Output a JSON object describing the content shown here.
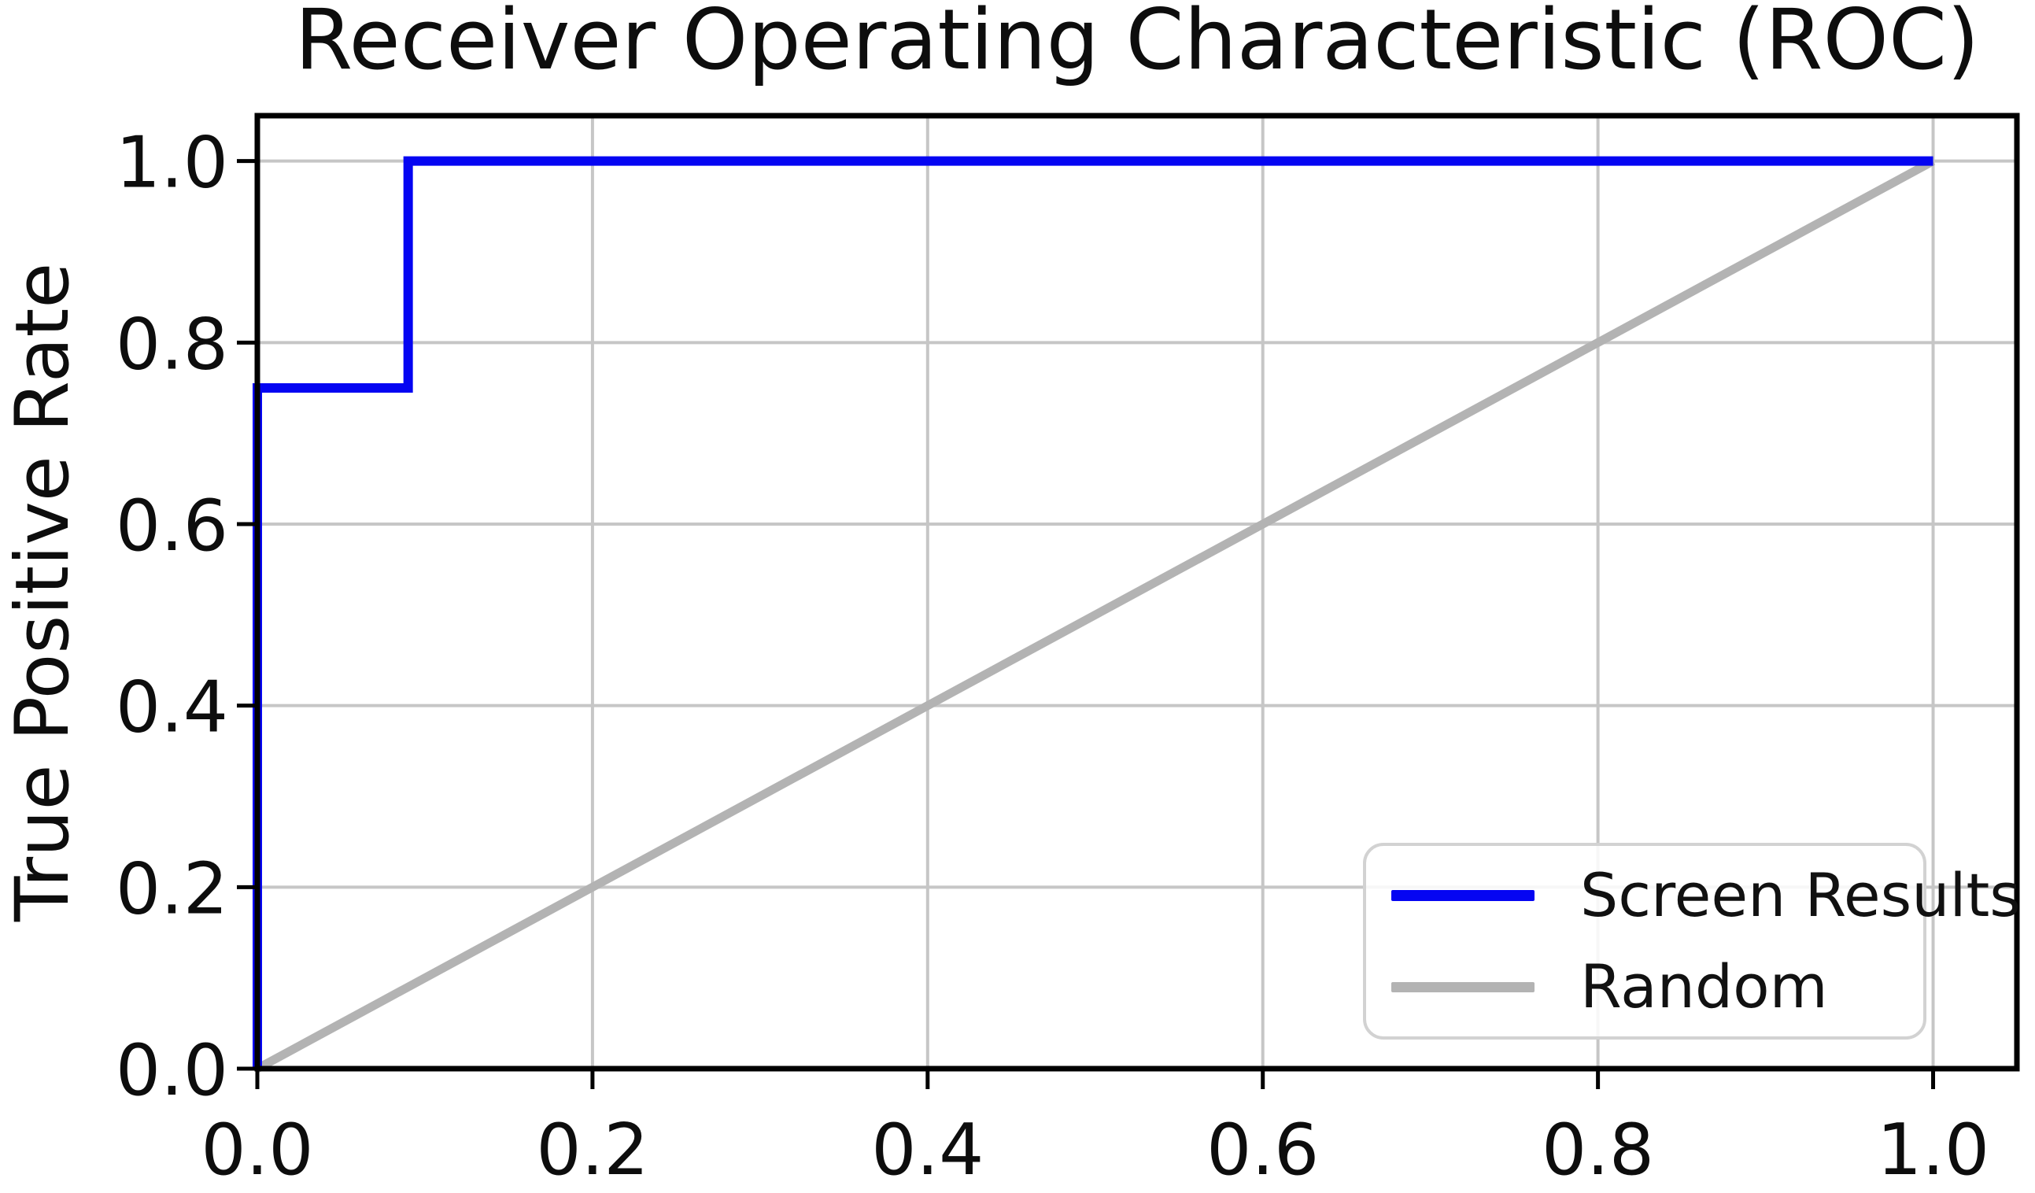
{
  "chart_data": {
    "type": "line",
    "title": "Receiver Operating Characteristic (ROC)",
    "xlabel": "",
    "ylabel": "True Positive Rate",
    "xlim": [
      0,
      1.05
    ],
    "ylim": [
      0,
      1.05
    ],
    "xtick_values": [
      0.0,
      0.2,
      0.4,
      0.6,
      0.8,
      1.0
    ],
    "xtick_labels": [
      "0.0",
      "0.2",
      "0.4",
      "0.6",
      "0.8",
      "1.0"
    ],
    "ytick_values": [
      0.0,
      0.2,
      0.4,
      0.6,
      0.8,
      1.0
    ],
    "ytick_labels": [
      "0.0",
      "0.2",
      "0.4",
      "0.6",
      "0.8",
      "1.0"
    ],
    "grid": true,
    "legend_position": "lower right",
    "series": [
      {
        "name": "Screen Results",
        "color": "#0505f2",
        "linewidth": 12,
        "x": [
          0.0,
          0.0,
          0.09,
          0.09,
          1.0
        ],
        "y": [
          0.0,
          0.75,
          0.75,
          1.0,
          1.0
        ]
      },
      {
        "name": "Random",
        "color": "#b3b3b3",
        "linewidth": 11,
        "x": [
          0.0,
          1.0
        ],
        "y": [
          0.0,
          1.0
        ]
      }
    ],
    "colors": {
      "background": "#ffffff",
      "grid": "#c6c6c6",
      "axis": "#000000",
      "text": "#0d0d0d",
      "legend_border": "#d2d2d2"
    }
  }
}
